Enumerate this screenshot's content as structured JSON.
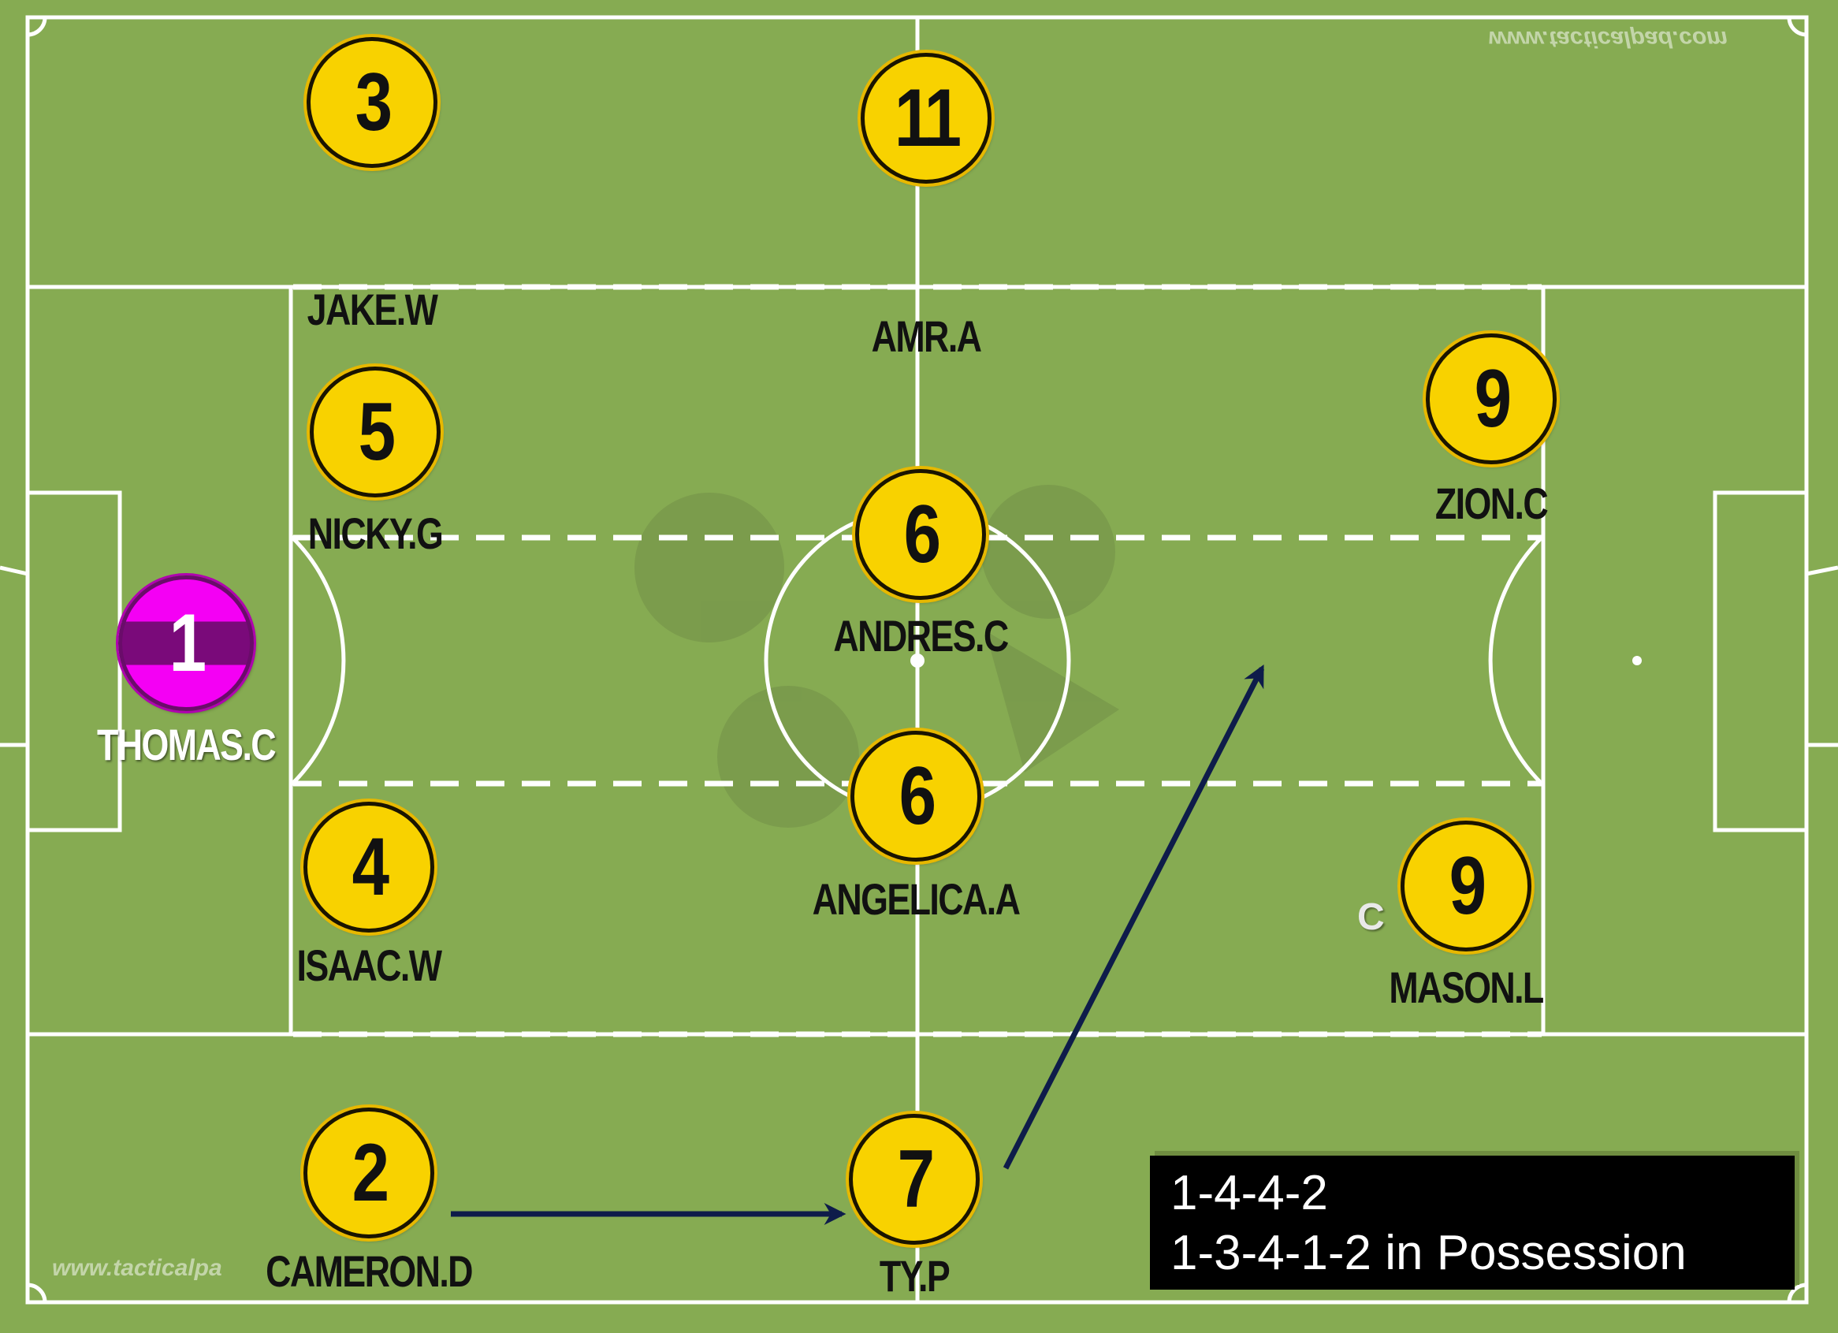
{
  "pitch": {
    "grass_color": "#86ab52",
    "line_color": "#ffffff"
  },
  "players": [
    {
      "key": "jake",
      "number": "3",
      "name": "JAKE.W",
      "kit": "outfield"
    },
    {
      "key": "amr",
      "number": "11",
      "name": "AMR.A",
      "kit": "outfield"
    },
    {
      "key": "nicky",
      "number": "5",
      "name": "NICKY.G",
      "kit": "outfield"
    },
    {
      "key": "thomas",
      "number": "1",
      "name": "THOMAS.C",
      "kit": "goalkeeper"
    },
    {
      "key": "isaac",
      "number": "4",
      "name": "ISAAC.W",
      "kit": "outfield"
    },
    {
      "key": "andres",
      "number": "6",
      "name": "ANDRES.C",
      "kit": "outfield"
    },
    {
      "key": "angelica",
      "number": "6",
      "name": "ANGELICA.A",
      "kit": "outfield"
    },
    {
      "key": "zion",
      "number": "9",
      "name": "ZION.C",
      "kit": "outfield"
    },
    {
      "key": "mason",
      "number": "9",
      "name": "MASON.L",
      "kit": "outfield"
    },
    {
      "key": "cameron",
      "number": "2",
      "name": "CAMERON.D",
      "kit": "outfield"
    },
    {
      "key": "typ",
      "number": "7",
      "name": "TY.P",
      "kit": "outfield"
    }
  ],
  "captain_marker": "C",
  "formation": {
    "line1": "1-4-4-2",
    "line2": "1-3-4-1-2 in Possession"
  },
  "colors": {
    "outfield_kit": "#f8d200",
    "goalkeeper_kit": "#f400f4",
    "arrow": "#0e1c4a",
    "label_box": "#000000"
  },
  "watermarks": {
    "bottom": "www.tacticalpa",
    "top_mirrored": "www.tacticalpad.com"
  }
}
